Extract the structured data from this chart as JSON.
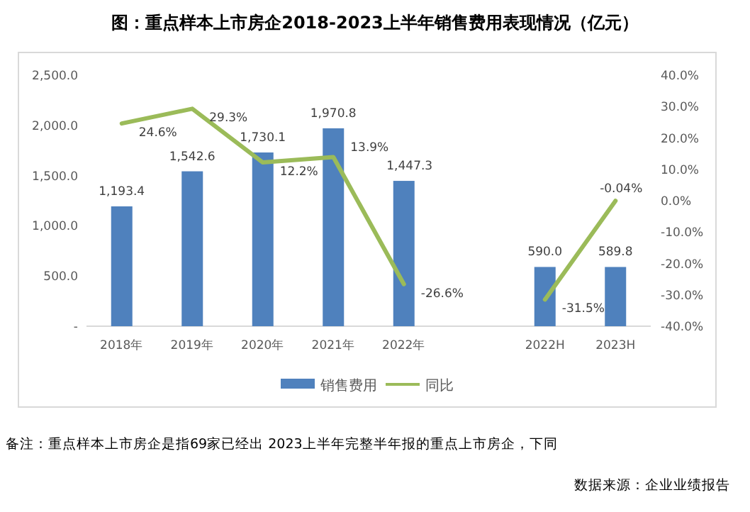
{
  "chart_data": {
    "type": "bar",
    "title": "图：重点样本上市房企2018-2023上半年销售费用表现情况（亿元）",
    "categories": [
      "2018年",
      "2019年",
      "2020年",
      "2021年",
      "2022年",
      null,
      "2022H",
      "2023H"
    ],
    "series": [
      {
        "name": "销售费用",
        "color": "#4f81bd",
        "values": [
          1193.4,
          1542.6,
          1730.1,
          1970.8,
          1447.3,
          null,
          590.0,
          589.8
        ],
        "value_labels": [
          "1,193.4",
          "1,542.6",
          "1,730.1",
          "1,970.8",
          "1,447.3",
          null,
          "590.0",
          "589.8"
        ]
      },
      {
        "name": "同比",
        "type": "line",
        "axis": "y2",
        "color": "#9bbb59",
        "values": [
          24.6,
          29.3,
          12.2,
          13.9,
          -26.6,
          null,
          -31.5,
          -0.04
        ],
        "value_labels": [
          "24.6%",
          "29.3%",
          "12.2%",
          "13.9%",
          "-26.6%",
          null,
          "-31.5%",
          "-0.04%"
        ]
      }
    ],
    "ylim": [
      0,
      2500
    ],
    "yticks": [
      {
        "value": 0,
        "label": "-"
      },
      {
        "value": 500,
        "label": "500.0"
      },
      {
        "value": 1000,
        "label": "1,000.0"
      },
      {
        "value": 1500,
        "label": "1,500.0"
      },
      {
        "value": 2000,
        "label": "2,000.0"
      },
      {
        "value": 2500,
        "label": "2,500.0"
      }
    ],
    "y2lim": [
      -40,
      40
    ],
    "y2ticks": [
      {
        "value": -40,
        "label": "-40.0%"
      },
      {
        "value": -30,
        "label": "-30.0%"
      },
      {
        "value": -20,
        "label": "-20.0%"
      },
      {
        "value": -10,
        "label": "-10.0%"
      },
      {
        "value": 0,
        "label": "0.0%"
      },
      {
        "value": 10,
        "label": "10.0%"
      },
      {
        "value": 20,
        "label": "20.0%"
      },
      {
        "value": 30,
        "label": "30.0%"
      },
      {
        "value": 40,
        "label": "40.0%"
      }
    ],
    "grid": false,
    "legend": "bottom",
    "annotations": [
      "备注：重点样本上市房企是指69家已经出 2023上半年完整半年报的重点上市房企，下同",
      "数据来源：企业业绩报告"
    ]
  }
}
